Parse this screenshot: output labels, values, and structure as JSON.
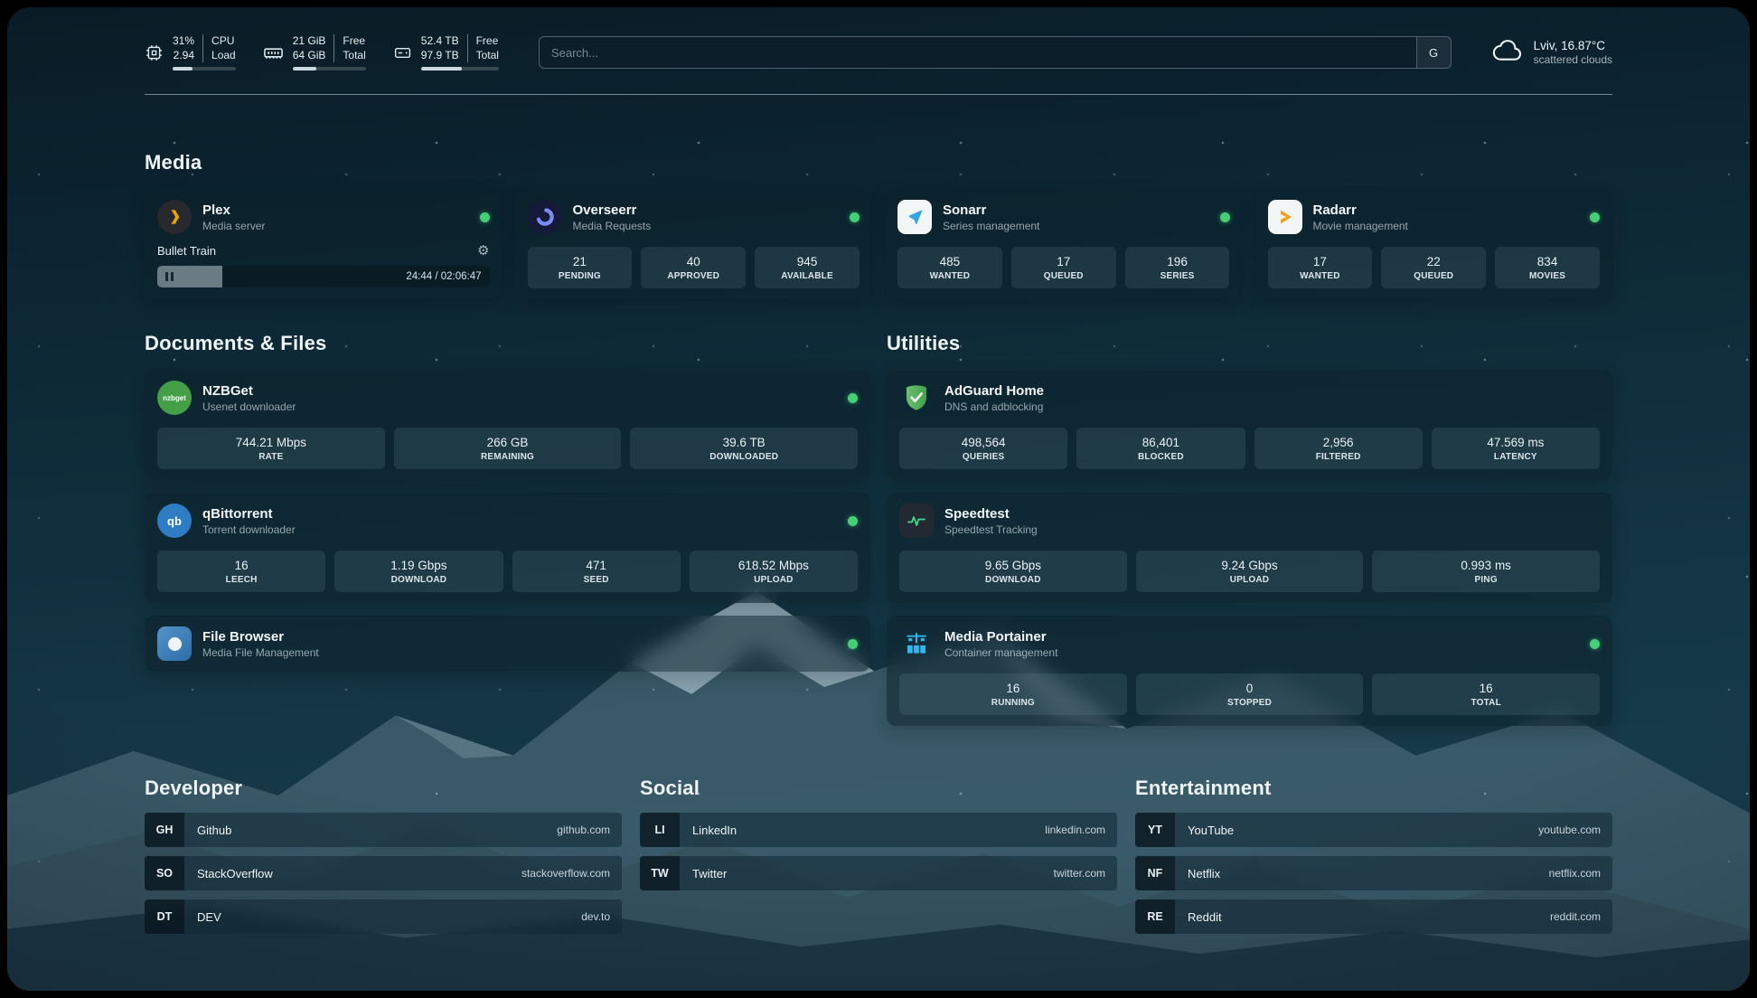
{
  "topbar": {
    "cpu": {
      "value": "31%",
      "load": "2.94",
      "label_top": "CPU",
      "label_bottom": "Load",
      "percent": 31
    },
    "memory": {
      "free": "21 GiB",
      "total": "64 GiB",
      "label_top": "Free",
      "label_bottom": "Total",
      "percent": 33
    },
    "storage": {
      "free": "52.4 TB",
      "total": "97.9 TB",
      "label_top": "Free",
      "label_bottom": "Total",
      "percent": 53
    },
    "search": {
      "placeholder": "Search...",
      "engine_label": "G"
    },
    "weather": {
      "location": "Lviv, 16.87°C",
      "condition": "scattered clouds"
    }
  },
  "icon_glyphs": {
    "gear": "⚙",
    "nzbget": "nzbget",
    "qbittorrent": "qb"
  },
  "sections": {
    "media": {
      "title": "Media",
      "plex": {
        "name": "Plex",
        "subtitle": "Media server",
        "now_playing": "Bullet Train",
        "time": "24:44 / 02:06:47",
        "progress_percent": 19.5
      },
      "overseerr": {
        "name": "Overseerr",
        "subtitle": "Media Requests",
        "stats": [
          {
            "value": "21",
            "label": "PENDING"
          },
          {
            "value": "40",
            "label": "APPROVED"
          },
          {
            "value": "945",
            "label": "AVAILABLE"
          }
        ]
      },
      "sonarr": {
        "name": "Sonarr",
        "subtitle": "Series management",
        "stats": [
          {
            "value": "485",
            "label": "WANTED"
          },
          {
            "value": "17",
            "label": "QUEUED"
          },
          {
            "value": "196",
            "label": "SERIES"
          }
        ]
      },
      "radarr": {
        "name": "Radarr",
        "subtitle": "Movie management",
        "stats": [
          {
            "value": "17",
            "label": "WANTED"
          },
          {
            "value": "22",
            "label": "QUEUED"
          },
          {
            "value": "834",
            "label": "MOVIES"
          }
        ]
      }
    },
    "documents": {
      "title": "Documents & Files",
      "nzbget": {
        "name": "NZBGet",
        "subtitle": "Usenet downloader",
        "stats": [
          {
            "value": "744.21 Mbps",
            "label": "RATE"
          },
          {
            "value": "266 GB",
            "label": "REMAINING"
          },
          {
            "value": "39.6 TB",
            "label": "DOWNLOADED"
          }
        ]
      },
      "qbittorrent": {
        "name": "qBittorrent",
        "subtitle": "Torrent downloader",
        "stats": [
          {
            "value": "16",
            "label": "LEECH"
          },
          {
            "value": "1.19 Gbps",
            "label": "DOWNLOAD"
          },
          {
            "value": "471",
            "label": "SEED"
          },
          {
            "value": "618.52 Mbps",
            "label": "UPLOAD"
          }
        ]
      },
      "filebrowser": {
        "name": "File Browser",
        "subtitle": "Media File Management"
      }
    },
    "utilities": {
      "title": "Utilities",
      "adguard": {
        "name": "AdGuard Home",
        "subtitle": "DNS and adblocking",
        "stats": [
          {
            "value": "498,564",
            "label": "QUERIES"
          },
          {
            "value": "86,401",
            "label": "BLOCKED"
          },
          {
            "value": "2,956",
            "label": "FILTERED"
          },
          {
            "value": "47.569 ms",
            "label": "LATENCY"
          }
        ]
      },
      "speedtest": {
        "name": "Speedtest",
        "subtitle": "Speedtest Tracking",
        "stats": [
          {
            "value": "9.65 Gbps",
            "label": "DOWNLOAD"
          },
          {
            "value": "9.24 Gbps",
            "label": "UPLOAD"
          },
          {
            "value": "0.993 ms",
            "label": "PING"
          }
        ]
      },
      "portainer": {
        "name": "Media Portainer",
        "subtitle": "Container management",
        "stats": [
          {
            "value": "16",
            "label": "RUNNING"
          },
          {
            "value": "0",
            "label": "STOPPED"
          },
          {
            "value": "16",
            "label": "TOTAL"
          }
        ]
      }
    },
    "developer": {
      "title": "Developer",
      "items": [
        {
          "badge": "GH",
          "name": "Github",
          "url": "github.com"
        },
        {
          "badge": "SO",
          "name": "StackOverflow",
          "url": "stackoverflow.com"
        },
        {
          "badge": "DT",
          "name": "DEV",
          "url": "dev.to"
        }
      ]
    },
    "social": {
      "title": "Social",
      "items": [
        {
          "badge": "LI",
          "name": "LinkedIn",
          "url": "linkedin.com"
        },
        {
          "badge": "TW",
          "name": "Twitter",
          "url": "twitter.com"
        }
      ]
    },
    "entertainment": {
      "title": "Entertainment",
      "items": [
        {
          "badge": "YT",
          "name": "YouTube",
          "url": "youtube.com"
        },
        {
          "badge": "NF",
          "name": "Netflix",
          "url": "netflix.com"
        },
        {
          "badge": "RE",
          "name": "Reddit",
          "url": "reddit.com"
        }
      ]
    }
  }
}
